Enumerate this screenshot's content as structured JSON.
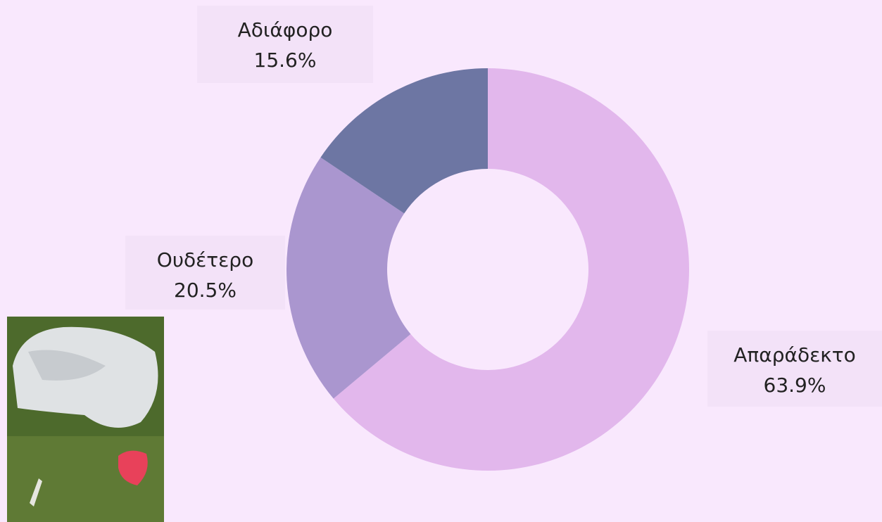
{
  "chart_data": {
    "type": "donut",
    "categories": [
      "Απαράδεκτο",
      "Ουδέτερο",
      "Αδιάφορο"
    ],
    "values": [
      63.9,
      20.5,
      15.6
    ],
    "value_labels": [
      "63.9%",
      "20.5%",
      "15.6%"
    ],
    "colors": [
      "#e2b7ec",
      "#aa96cf",
      "#6d76a3"
    ]
  }
}
